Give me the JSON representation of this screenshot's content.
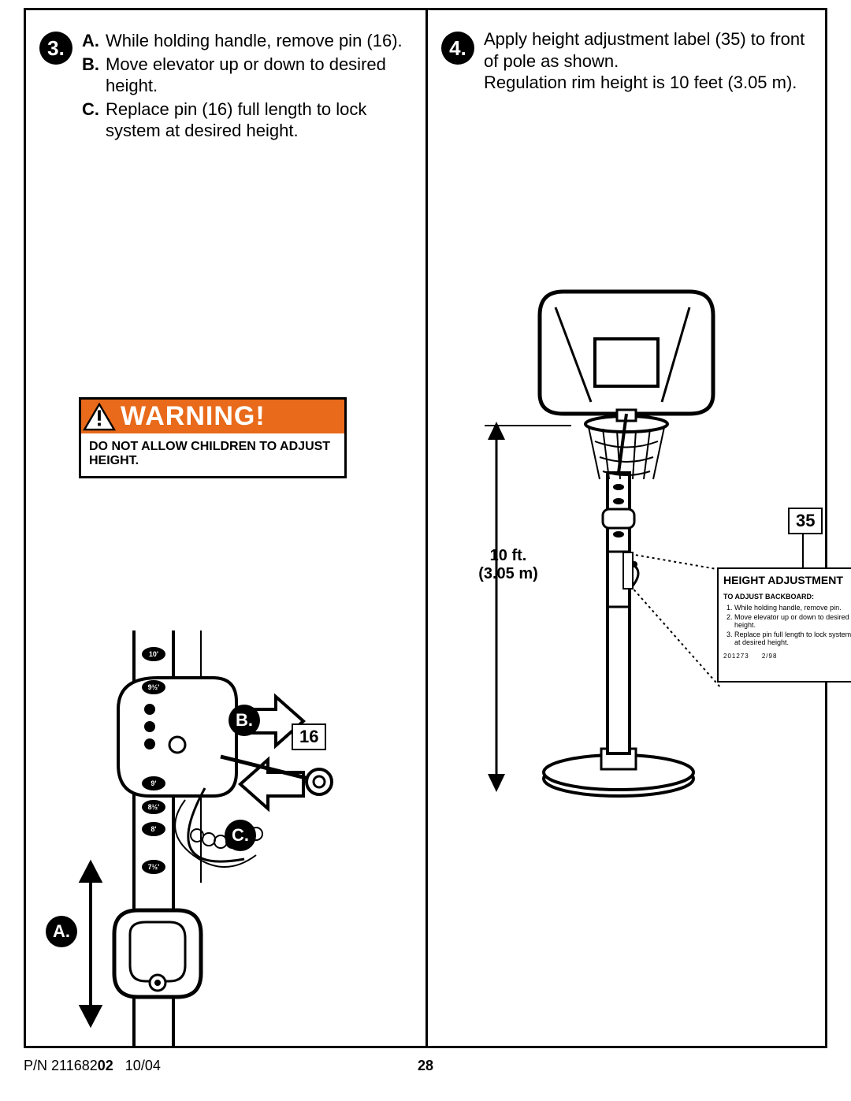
{
  "step3": {
    "number": "3.",
    "lines": [
      {
        "lead": "A.",
        "text": "While holding handle, remove pin (16)."
      },
      {
        "lead": "B.",
        "text": "Move elevator up or down to desired height."
      },
      {
        "lead": "C.",
        "text": "Replace pin (16) full length to lock system at desired height."
      }
    ]
  },
  "step4": {
    "number": "4.",
    "text1": "Apply height adjustment label (35) to front of pole as shown.",
    "text2": "Regulation rim height is 10 feet (3.05 m)."
  },
  "warning": {
    "title": "WARNING!",
    "body": "DO NOT ALLOW CHILDREN TO ADJUST HEIGHT."
  },
  "partbox_16": "16",
  "partbox_35": "35",
  "lbl_A": "A.",
  "lbl_B": "B.",
  "lbl_C": "C.",
  "dim_line1": "10 ft.",
  "dim_line2": "(3.05 m)",
  "ha": {
    "title": "HEIGHT ADJUSTMENT",
    "sub": "TO ADJUST BACKBOARD:",
    "items": [
      "While holding handle, remove pin.",
      "Move elevator up or down to desired height.",
      "Replace pin full length to lock system at desired height."
    ],
    "foot_l": "201273",
    "foot_r": "2/98"
  },
  "pole_marks": [
    "10'",
    "9½'",
    "9'",
    "8½'",
    "8'",
    "7½'"
  ],
  "footer": {
    "pn_prefix": "P/N 211682",
    "pn_bold": "02",
    "date": "10/04",
    "page": "28"
  },
  "colors": {
    "orange": "#e86a1a",
    "black": "#000000",
    "white": "#ffffff"
  }
}
